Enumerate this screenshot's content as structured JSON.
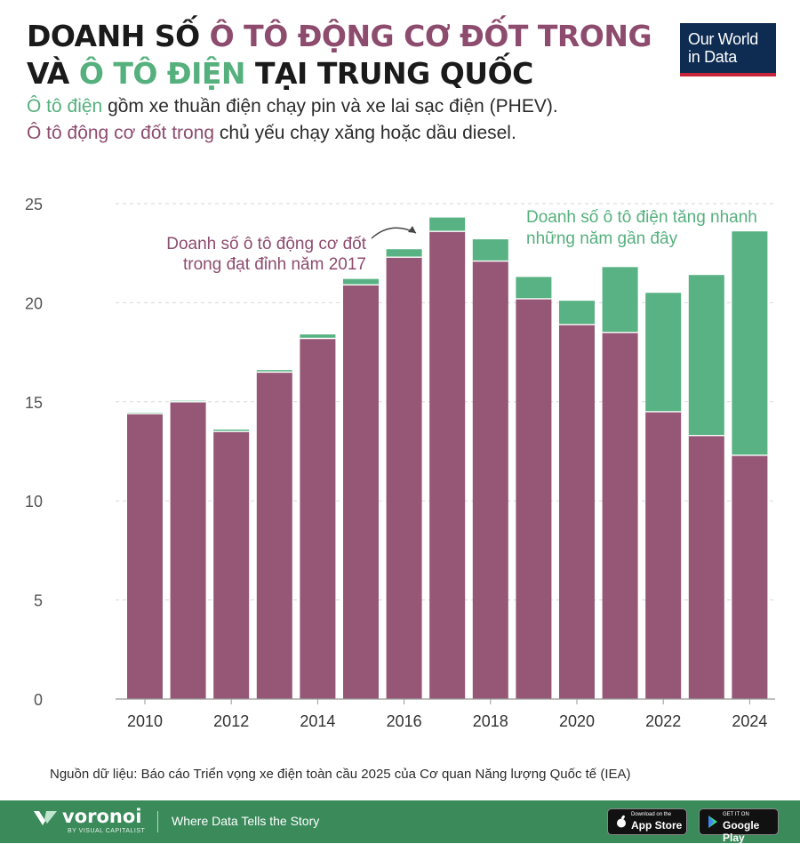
{
  "header": {
    "title_line1_a": "DOANH SỐ ",
    "title_line1_b": "Ô TÔ ĐỘNG CƠ ĐỐT TRONG",
    "title_line2_a": "VÀ ",
    "title_line2_b": "Ô TÔ ĐIỆN",
    "title_line2_c": " TẠI TRUNG QUỐC",
    "subtitle1_a": "Ô tô điện",
    "subtitle1_b": " gồm xe thuần điện chạy pin và xe lai sạc điện (PHEV).",
    "subtitle2_a": "Ô tô động cơ đốt trong",
    "subtitle2_b": " chủ yếu chạy xăng hoặc dầu diesel.",
    "logo_line1": "Our World",
    "logo_line2": "in Data"
  },
  "chart_data": {
    "type": "bar",
    "stacked": true,
    "categories": [
      "2010",
      "2011",
      "2012",
      "2013",
      "2014",
      "2015",
      "2016",
      "2017",
      "2018",
      "2019",
      "2020",
      "2021",
      "2022",
      "2023",
      "2024"
    ],
    "x_tick_labels": [
      "2010",
      "2012",
      "2014",
      "2016",
      "2018",
      "2020",
      "2022",
      "2024"
    ],
    "series": [
      {
        "key": "ice",
        "color": "#955775",
        "values": [
          14.4,
          15.0,
          13.5,
          16.5,
          18.2,
          20.9,
          22.3,
          23.6,
          22.1,
          20.2,
          18.9,
          18.5,
          14.5,
          13.3,
          12.3
        ]
      },
      {
        "key": "ev",
        "color": "#58b283",
        "values": [
          0.05,
          0.05,
          0.1,
          0.1,
          0.2,
          0.3,
          0.4,
          0.7,
          1.1,
          1.1,
          1.2,
          3.3,
          6.0,
          8.1,
          11.3
        ]
      }
    ],
    "ylim": [
      0,
      25
    ],
    "y_ticks": [
      0,
      5,
      10,
      15,
      20,
      25
    ],
    "grid": true,
    "annotations": [
      {
        "line1": "Doanh số ô tô động cơ đốt",
        "line2": "trong đạt đỉnh năm 2017",
        "color": "#8d4b6e"
      },
      {
        "line1": "Doanh số ô tô điện tăng nhanh",
        "line2": "những năm gần đây",
        "color": "#55b07d"
      }
    ]
  },
  "source_text": "Nguồn dữ liệu:  Báo cáo Triển vọng xe điện toàn cầu 2025 của Cơ quan Năng lượng Quốc tế (IEA)",
  "footer": {
    "brand": "voronoi",
    "brand_sub": "BY VISUAL CAPITALIST",
    "tagline": "Where Data Tells the Story",
    "appstore_small": "Download on the",
    "appstore_big": "App Store",
    "googleplay_small": "GET IT ON",
    "googleplay_big": "Google Play"
  }
}
